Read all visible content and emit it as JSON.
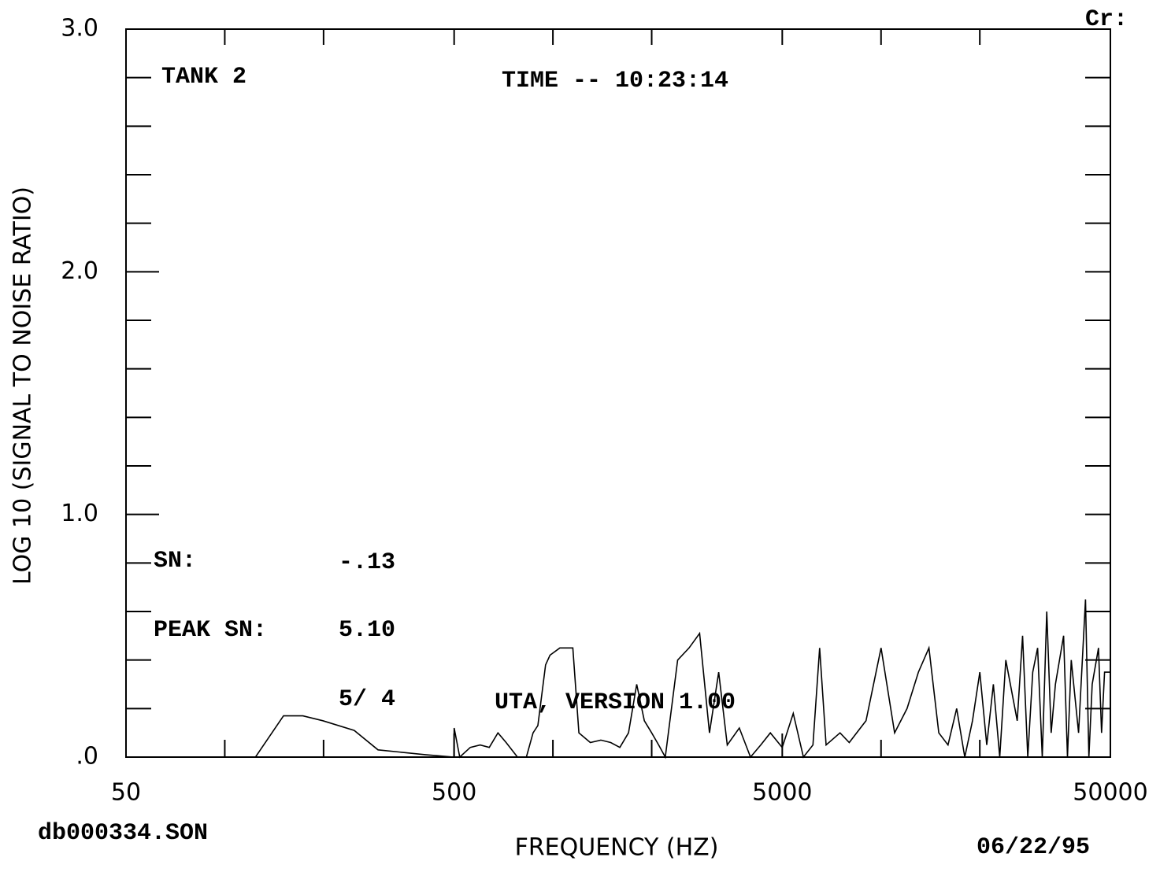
{
  "chart_data": {
    "type": "line",
    "title": "TIME -- 10:23:14",
    "xlabel": "FREQUENCY (HZ)",
    "ylabel": "LOG 10 (SIGNAL TO NOISE RATIO)",
    "annotations": [
      "TANK 2",
      "SN:",
      "-.13",
      "PEAK SN:",
      "5.10",
      "5/ 4",
      "UTA, VERSION 1.00",
      "db000334.SON",
      "06/22/95",
      "Cr:"
    ],
    "xscale": "log",
    "xlim": [
      50,
      50000
    ],
    "xticks": [
      50,
      500,
      5000,
      50000
    ],
    "xminorticks": [
      100,
      200,
      1000,
      2000,
      10000,
      20000
    ],
    "ylim": [
      0,
      3
    ],
    "yticks": [
      {
        "value": 0,
        "label": ".0"
      },
      {
        "value": 1,
        "label": "1.0"
      },
      {
        "value": 2,
        "label": "2.0"
      },
      {
        "value": 3,
        "label": "3.0"
      }
    ],
    "yminorticks": [
      0.2,
      0.4,
      0.6,
      0.8,
      1.2,
      1.4,
      1.6,
      1.8,
      2.2,
      2.4,
      2.6,
      2.8
    ],
    "grid": false,
    "series": [
      {
        "color": "#000000",
        "x": [
          50,
          124,
          151,
          173,
          199,
          248,
          293,
          408,
          499,
          500,
          520,
          560,
          600,
          640,
          680,
          720,
          780,
          830,
          870,
          900,
          950,
          980,
          1050,
          1150,
          1200,
          1300,
          1400,
          1500,
          1600,
          1700,
          1800,
          1900,
          2000,
          2100,
          2200,
          2400,
          2600,
          2800,
          2900,
          3000,
          3200,
          3400,
          3700,
          4000,
          4300,
          4600,
          5000,
          5400,
          5800,
          6200,
          6500,
          6800,
          7500,
          8000,
          9000,
          10000,
          11000,
          12000,
          13000,
          14000,
          15000,
          16000,
          17000,
          18000,
          19000,
          20000,
          21000,
          22000,
          23000,
          24000,
          26000,
          27000,
          28000,
          29000,
          30000,
          31000,
          32000,
          33000,
          34000,
          36000,
          37000,
          38000,
          40000,
          42000,
          43000,
          44000,
          46000,
          47000,
          48000,
          50000
        ],
        "values": [
          0,
          0,
          0.17,
          0.17,
          0.15,
          0.11,
          0.03,
          0.01,
          0,
          0.12,
          0,
          0.04,
          0.05,
          0.04,
          0.1,
          0.06,
          0,
          0,
          0.1,
          0.13,
          0.38,
          0.42,
          0.45,
          0.45,
          0.1,
          0.06,
          0.07,
          0.06,
          0.04,
          0.1,
          0.3,
          0.15,
          0.1,
          0.05,
          0,
          0.4,
          0.45,
          0.51,
          0.3,
          0.1,
          0.35,
          0.05,
          0.12,
          0,
          0.05,
          0.1,
          0.04,
          0.18,
          0,
          0.05,
          0.45,
          0.05,
          0.1,
          0.06,
          0.15,
          0.45,
          0.1,
          0.2,
          0.35,
          0.45,
          0.1,
          0.05,
          0.2,
          0,
          0.15,
          0.35,
          0.05,
          0.3,
          0,
          0.4,
          0.15,
          0.5,
          0,
          0.35,
          0.45,
          0,
          0.6,
          0.1,
          0.3,
          0.5,
          0,
          0.4,
          0.1,
          0.65,
          0,
          0.3,
          0.45,
          0.1,
          0.35,
          0.35
        ]
      }
    ]
  }
}
